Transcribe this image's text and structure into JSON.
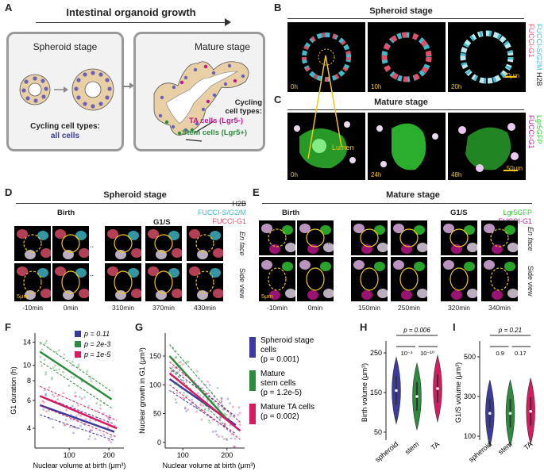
{
  "panel_a": {
    "label": "A",
    "title": "Intestinal organoid growth",
    "spheroid_title": "Spheroid stage",
    "spheroid_caption_1": "Cycling cell types:",
    "spheroid_caption_2": "all cells",
    "mature_title": "Mature stage",
    "mature_caption_1": "Cycling",
    "mature_caption_2": "cell types:",
    "mature_ta": "TA cells (Lgr5-)",
    "mature_stem": "Stem cells (Lgr5+)"
  },
  "panel_b": {
    "label": "B",
    "title": "Spheroid stage",
    "times": [
      "0h",
      "10h",
      "20h"
    ],
    "scale": "10μm",
    "legend": [
      "FUCCI-G1",
      "FUCCI-S/G2M",
      "H2B"
    ],
    "lumen": "Lumen"
  },
  "panel_c": {
    "label": "C",
    "title": "Mature stage",
    "times": [
      "0h",
      "24h",
      "48h"
    ],
    "scale": "50μm",
    "legend": [
      "FUCCI-G1",
      "Lgr5GFP"
    ]
  },
  "panel_d": {
    "label": "D",
    "title": "Spheroid stage",
    "legend": [
      "H2B",
      "FUCCI-S/G2/M",
      "FUCCI-G1"
    ],
    "birth": "Birth",
    "g1s": "G1/S",
    "times": [
      "-10min",
      "0min",
      "310min",
      "370min",
      "430min"
    ],
    "en_face": "En face",
    "side_view": "Side view",
    "scale": "5μm",
    "dots": "..."
  },
  "panel_e": {
    "label": "E",
    "title": "Mature stage",
    "legend": [
      "Lgr5GFP",
      "FUCCI-G1"
    ],
    "birth": "Birth",
    "g1s": "G1/S",
    "times": [
      "-10min",
      "0min",
      "150min",
      "250min",
      "320min",
      "340min"
    ],
    "en_face": "En face",
    "side_view": "Side view",
    "scale": "5μm",
    "star": "*",
    "dots": "..."
  },
  "panel_f": {
    "label": "F"
  },
  "panel_g": {
    "label": "G"
  },
  "panel_h": {
    "label": "H"
  },
  "panel_i": {
    "label": "I"
  },
  "colors": {
    "spheroid": "#3b3b9e",
    "stem": "#2e8b3e",
    "ta": "#d81b60",
    "lgr5": "#33cc33",
    "cyan": "#3fbccc",
    "g1": "#e0506a",
    "yellow": "#f5c518"
  },
  "chart_data": [
    {
      "id": "F",
      "type": "scatter",
      "xlabel": "Nuclear volume at birth (μm³)",
      "ylabel": "G1 duration (h)",
      "xscale": "log",
      "yscale": "log",
      "xticks": [
        100,
        200
      ],
      "yticks": [
        4,
        6,
        8,
        10,
        14
      ],
      "xlim": [
        55,
        260
      ],
      "ylim": [
        3,
        16
      ],
      "legend": [
        {
          "name": "p = 0.11",
          "color": "#3b3b9e"
        },
        {
          "name": "p = 2e-3",
          "color": "#2e8b3e"
        },
        {
          "name": "p = 1e-5",
          "color": "#d81b60"
        }
      ],
      "fits": [
        {
          "series": "spheroid",
          "x": [
            60,
            220
          ],
          "y": [
            5.6,
            3.8
          ]
        },
        {
          "series": "stem",
          "x": [
            60,
            210
          ],
          "y": [
            12.2,
            6.1
          ]
        },
        {
          "series": "ta",
          "x": [
            60,
            230
          ],
          "y": [
            6.4,
            4.0
          ]
        }
      ]
    },
    {
      "id": "G",
      "type": "scatter",
      "xlabel": "Nuclear volume at birth (μm³)",
      "ylabel": "Nuclear growth in G1 (μm³)",
      "xticks": [
        100,
        200
      ],
      "yticks": [
        0,
        50,
        100,
        150
      ],
      "xlim": [
        60,
        240
      ],
      "ylim": [
        -10,
        190
      ],
      "legend": [
        {
          "name": "Spheroid stage",
          "name2": "cells",
          "p": "(p = 0.001)",
          "color": "#3b3b9e"
        },
        {
          "name": "Mature",
          "name2": "stem cells",
          "p": "(p = 1.2e-5)",
          "color": "#2e8b3e"
        },
        {
          "name": "Mature TA cells",
          "name2": "",
          "p": "(p = 0.002)",
          "color": "#d81b60"
        }
      ],
      "fits": [
        {
          "series": "spheroid",
          "x": [
            70,
            220
          ],
          "y": [
            110,
            30
          ]
        },
        {
          "series": "stem",
          "x": [
            70,
            200
          ],
          "y": [
            150,
            40
          ]
        },
        {
          "series": "ta",
          "x": [
            70,
            230
          ],
          "y": [
            120,
            20
          ]
        }
      ]
    },
    {
      "id": "H",
      "type": "violin",
      "categories": [
        "spheroid",
        "stem",
        "TA"
      ],
      "ylabel": "Birth volume (μm³)",
      "yticks": [
        50,
        150,
        250
      ],
      "ylim": [
        30,
        270
      ],
      "medians": [
        155,
        140,
        160
      ],
      "annotations": [
        "p = 0.006",
        "10⁻³",
        "10⁻¹⁰"
      ]
    },
    {
      "id": "I",
      "type": "violin",
      "categories": [
        "spheroid",
        "stem",
        "TA"
      ],
      "ylabel": "G1/S volume (μm³)",
      "yticks": [
        100,
        300,
        500
      ],
      "ylim": [
        80,
        560
      ],
      "medians": [
        215,
        215,
        225
      ],
      "annotations": [
        "p = 0.21",
        "0.9",
        "0.17"
      ]
    }
  ]
}
